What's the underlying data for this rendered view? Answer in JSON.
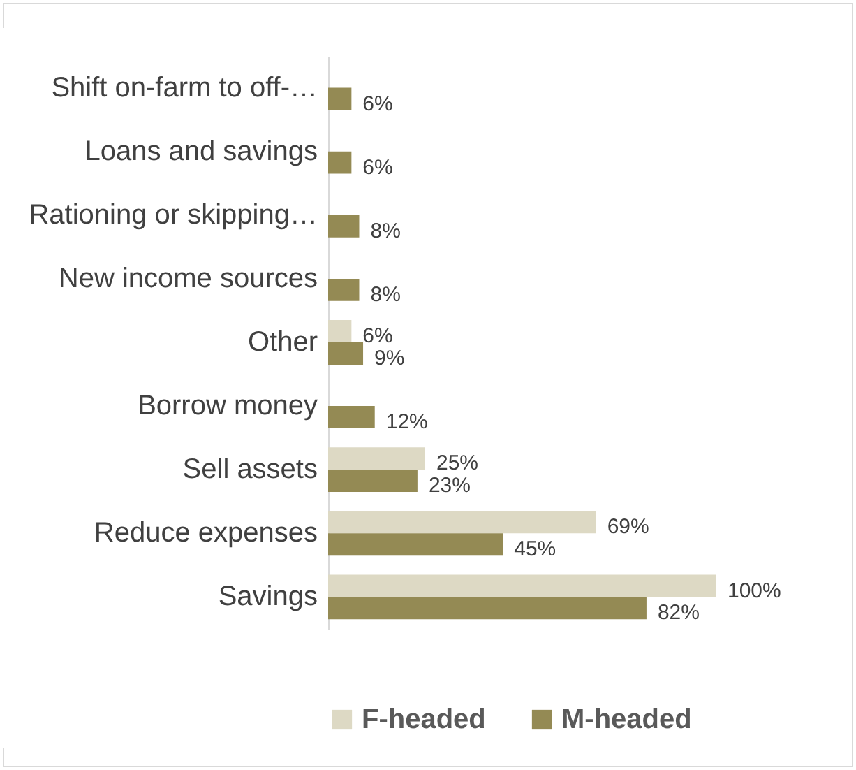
{
  "chart_data": {
    "type": "bar",
    "orientation": "horizontal",
    "categories": [
      "Shift on-farm to off-…",
      "Loans and savings",
      "Rationing or skipping…",
      "New income sources",
      "Other",
      "Borrow money",
      "Sell assets",
      "Reduce expenses",
      "Savings"
    ],
    "series": [
      {
        "name": "F-headed",
        "color": "#ddd9c4",
        "values": [
          null,
          null,
          null,
          null,
          6,
          null,
          25,
          69,
          100
        ],
        "value_labels": [
          null,
          null,
          null,
          null,
          "6%",
          null,
          "25%",
          "69%",
          "100%"
        ]
      },
      {
        "name": "M-headed",
        "color": "#948a54",
        "values": [
          6,
          6,
          8,
          8,
          9,
          12,
          23,
          45,
          82
        ],
        "value_labels": [
          "6%",
          "6%",
          "8%",
          "8%",
          "9%",
          "12%",
          "23%",
          "45%",
          "82%"
        ]
      }
    ],
    "legend": "bottom"
  }
}
